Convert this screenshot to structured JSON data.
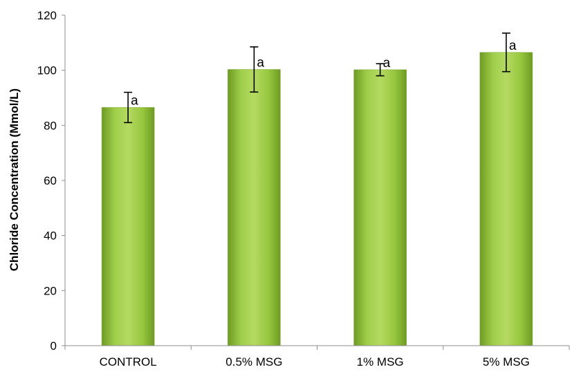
{
  "chart_data": {
    "type": "bar",
    "title": "",
    "xlabel": "",
    "ylabel": "Chloride Concentration (Mmol/L)",
    "categories": [
      "CONTROL",
      "0.5% MSG",
      "1% MSG",
      "5% MSG"
    ],
    "values": [
      86.5,
      100.3,
      100.2,
      106.5
    ],
    "error": [
      5.5,
      8.2,
      2.2,
      7.0
    ],
    "annotations": [
      "a",
      "a",
      "a",
      "a"
    ],
    "ylim": [
      0,
      120
    ],
    "yticks": [
      0,
      20,
      40,
      60,
      80,
      100,
      120
    ],
    "grid": false,
    "legend": "none",
    "colors": {
      "bar_light": "#b5da62",
      "bar_mid": "#8fc23a",
      "bar_dark": "#6e9a24",
      "axis": "#8c8c8c"
    }
  }
}
